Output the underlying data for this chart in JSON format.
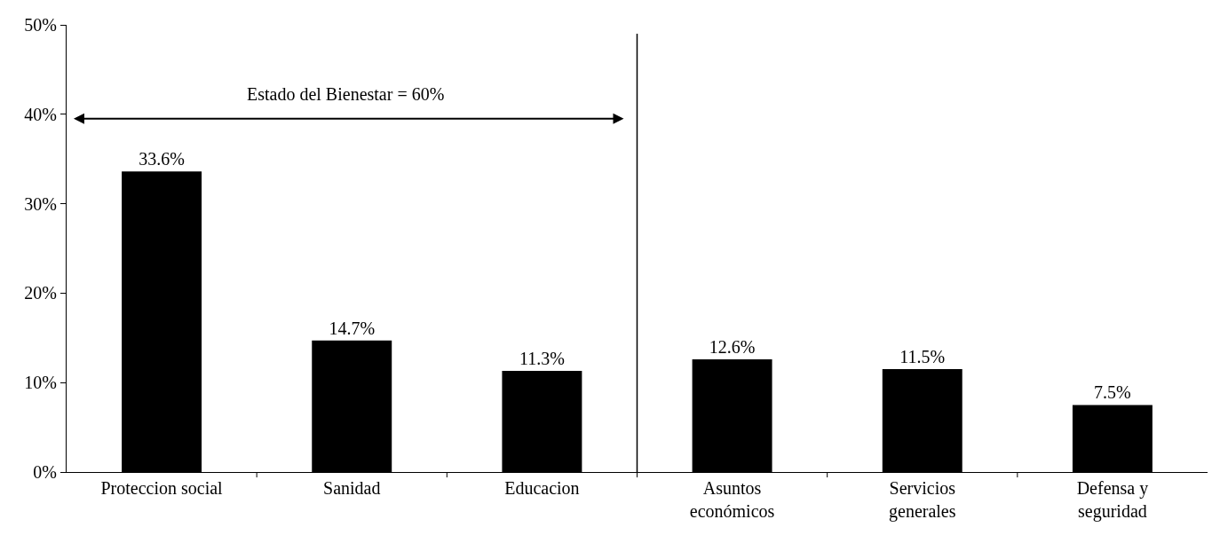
{
  "chart_data": {
    "type": "bar",
    "categories": [
      "Proteccion social",
      "Sanidad",
      "Educacion",
      "Asuntos\neconómicos",
      "Servicios\ngenerales",
      "Defensa y\nseguridad"
    ],
    "values": [
      33.6,
      14.7,
      11.3,
      12.6,
      11.5,
      7.5
    ],
    "value_labels": [
      "33.6%",
      "14.7%",
      "11.3%",
      "12.6%",
      "11.5%",
      "7.5%"
    ],
    "color": "#000000",
    "ylim": [
      0,
      50
    ],
    "yticks": [
      {
        "value": 0,
        "label": "0%"
      },
      {
        "value": 10,
        "label": "10%"
      },
      {
        "value": 20,
        "label": "20%"
      },
      {
        "value": 30,
        "label": "30%"
      },
      {
        "value": 40,
        "label": "40%"
      },
      {
        "value": 50,
        "label": "50%"
      }
    ],
    "legend": false,
    "annotations": [
      "Estado del Bienestar = 60%"
    ]
  }
}
